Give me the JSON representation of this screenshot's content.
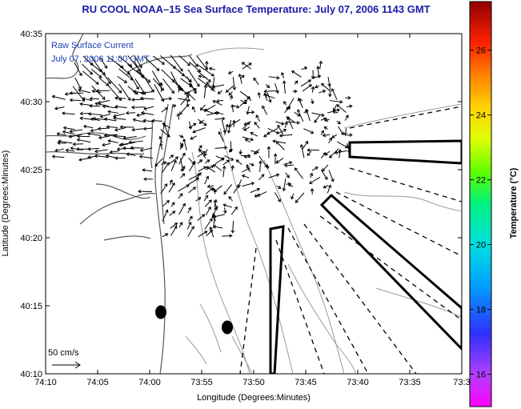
{
  "title": "RU COOL  NOAA–15  Sea Surface Temperature:  July 07, 2006 1143 GMT",
  "inset": {
    "line1": "Raw Surface Current",
    "line2": "July 07, 2006 11:00 GMT"
  },
  "scale": {
    "label": "50 cm/s",
    "value_cms": 50
  },
  "axes": {
    "xlabel": "Longitude (Degrees:Minutes)",
    "ylabel": "Latitude (Degrees:Minutes)",
    "x_ticks": [
      "74:10",
      "74:05",
      "74:00",
      "73:55",
      "73:50",
      "73:45",
      "73:40",
      "73:35",
      "73:3"
    ],
    "y_ticks": [
      "40:35",
      "40:30",
      "40:25",
      "40:20",
      "40:15",
      "40:10"
    ],
    "xlim": [
      -74.1667,
      -73.5
    ],
    "ylim": [
      40.1667,
      40.5833
    ]
  },
  "colorbar": {
    "label": "Temperature (°C)",
    "ticks": [
      "26",
      "24",
      "22",
      "20",
      "18",
      "16"
    ],
    "range": [
      15,
      27.5
    ]
  },
  "map_colors": {
    "land_outline": "#555555",
    "bathymetry": "#9a9a9a",
    "vectors": "#000000",
    "sediment": "#000000"
  }
}
